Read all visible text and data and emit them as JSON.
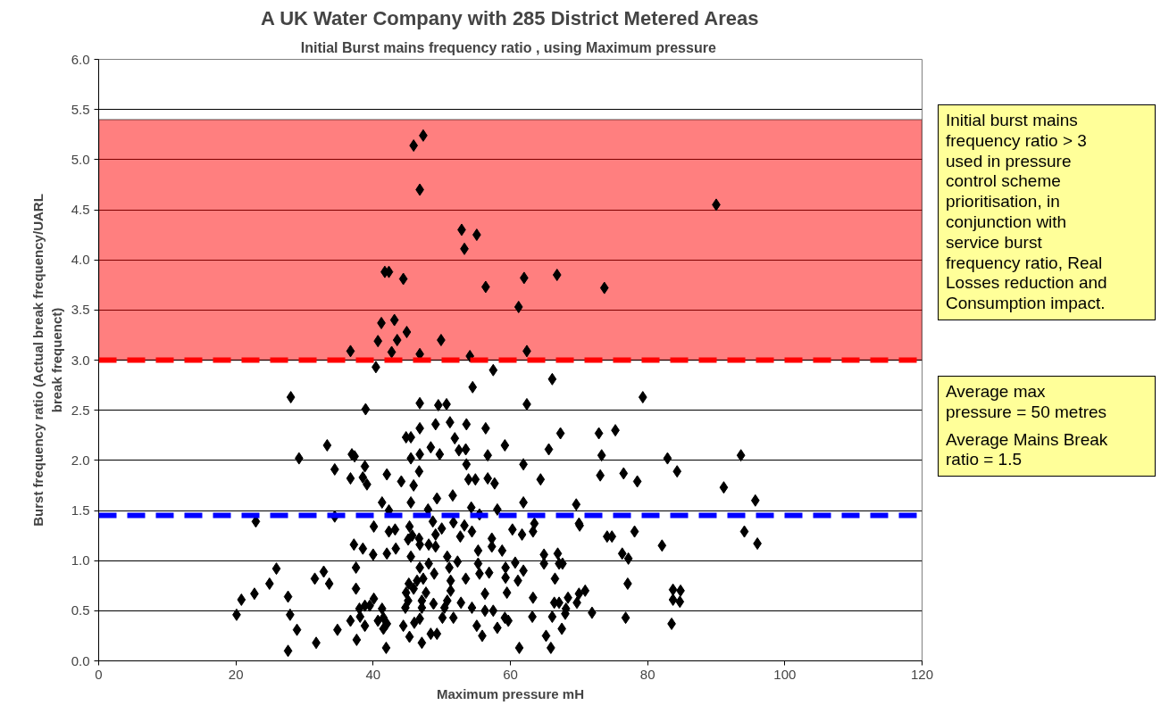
{
  "chart_data": {
    "type": "scatter",
    "title": "A UK Water Company with 285 District Metered Areas",
    "subtitle": "Initial Burst mains frequency ratio , using  Maximum pressure",
    "xlabel": "Maximum pressure mH",
    "ylabel": "Burst frequency ratio (Actual break frequency/UARL\nbreak frequenct)",
    "xlim": [
      0,
      120
    ],
    "xticks": [
      0,
      20,
      40,
      60,
      80,
      100,
      120
    ],
    "ylim": [
      0,
      6
    ],
    "yticks": [
      {
        "value": 0,
        "label": "0.0"
      },
      {
        "value": 0.5,
        "label": "0.5"
      },
      {
        "value": 1,
        "label": "1.0"
      },
      {
        "value": 1.5,
        "label": "1.5"
      },
      {
        "value": 2,
        "label": "2.0"
      },
      {
        "value": 2.5,
        "label": "2.5"
      },
      {
        "value": 3,
        "label": "3.0"
      },
      {
        "value": 3.5,
        "label": "3.5"
      },
      {
        "value": 4,
        "label": "4.0"
      },
      {
        "value": 4.5,
        "label": "4.5"
      },
      {
        "value": 5,
        "label": "5.0"
      },
      {
        "value": 5.5,
        "label": "5.5"
      },
      {
        "value": 6,
        "label": "6.0"
      }
    ],
    "grid": "y",
    "marker": "diamond",
    "series": [
      {
        "color": "#000000",
        "x": [
          47.3,
          45.9,
          46.8,
          52.9,
          55.1,
          53.3,
          90.0,
          56.4,
          62.0,
          66.8,
          73.7,
          41.7,
          42.3,
          44.4,
          61.2,
          41.2,
          43.1,
          44.9,
          40.7,
          43.5,
          49.9,
          36.7,
          42.7,
          46.8,
          54.1,
          62.4,
          40.4,
          57.5,
          54.5,
          28.0,
          46.8,
          49.5,
          50.7,
          38.9,
          66.1,
          62.4,
          79.3,
          33.3,
          29.2,
          36.9,
          37.3,
          34.4,
          38.8,
          36.7,
          38.5,
          39.1,
          22.9,
          34.4,
          37.2,
          38.5,
          25.9,
          37.5,
          32.8,
          31.5,
          33.6,
          24.9,
          22.7,
          27.6,
          37.5,
          20.8,
          20.1,
          27.9,
          38.0,
          38.8,
          38.1,
          36.7,
          38.8,
          28.9,
          34.8,
          31.7,
          37.6,
          27.6,
          44.8,
          45.5,
          46.8,
          49.1,
          51.2,
          53.6,
          56.4,
          51.9,
          48.4,
          52.5,
          53.5,
          59.2,
          67.3,
          72.9,
          75.3,
          65.6,
          73.3,
          45.5,
          46.8,
          49.7,
          56.7,
          53.6,
          61.9,
          46.7,
          42.0,
          44.1,
          45.9,
          53.9,
          54.9,
          56.7,
          57.7,
          64.4,
          73.1,
          41.3,
          45.5,
          49.3,
          51.6,
          61.9,
          69.6,
          42.3,
          48.0,
          54.3,
          55.5,
          58.1,
          40.1,
          42.3,
          43.2,
          45.3,
          45.7,
          46.7,
          48.7,
          50.0,
          49.1,
          51.7,
          53.3,
          54.4,
          52.7,
          60.3,
          61.7,
          63.5,
          63.3,
          70.0,
          70.1,
          74.1,
          74.8,
          57.3,
          40.0,
          42.0,
          43.3,
          45.1,
          46.8,
          48.1,
          49.1,
          45.5,
          50.8,
          52.3,
          55.3,
          57.3,
          58.8,
          64.9,
          66.9,
          46.8,
          48.1,
          48.9,
          51.1,
          55.3,
          55.5,
          56.9,
          59.3,
          60.7,
          61.9,
          53.5,
          64.9,
          67.1,
          67.6,
          66.5,
          45.2,
          46.4,
          47.3,
          51.3,
          59.3,
          61.1,
          44.8,
          45.9,
          47.7,
          51.3,
          56.3,
          59.5,
          45.1,
          47.1,
          48.8,
          50.8,
          52.8,
          63.3,
          66.4,
          67.1,
          68.4,
          70.0,
          70.9,
          69.7,
          39.5,
          40.1,
          41.3,
          44.7,
          47.1,
          50.4,
          54.4,
          56.3,
          57.5,
          68.1,
          71.9,
          40.7,
          41.5,
          42.0,
          44.4,
          46.0,
          46.8,
          50.1,
          51.7,
          59.2,
          59.7,
          63.2,
          66.1,
          68.0,
          41.5,
          55.1,
          58.1,
          45.3,
          48.4,
          49.3,
          55.9,
          65.2,
          67.5,
          41.9,
          47.1,
          61.3,
          65.9,
          76.5,
          78.5,
          82.9,
          84.3,
          91.1,
          93.6,
          95.7,
          78.1,
          82.1,
          94.1,
          96.0,
          76.3,
          77.2,
          77.1,
          83.7,
          84.8,
          83.7,
          84.7,
          76.8,
          83.5
        ],
        "values": [
          5.24,
          5.14,
          4.7,
          4.3,
          4.25,
          4.11,
          4.55,
          3.73,
          3.82,
          3.85,
          3.72,
          3.88,
          3.88,
          3.81,
          3.53,
          3.37,
          3.4,
          3.28,
          3.19,
          3.2,
          3.2,
          3.09,
          3.08,
          3.06,
          3.04,
          3.09,
          2.93,
          2.9,
          2.73,
          2.63,
          2.57,
          2.55,
          2.56,
          2.51,
          2.81,
          2.56,
          2.63,
          2.15,
          2.02,
          2.06,
          2.04,
          1.91,
          1.94,
          1.82,
          1.83,
          1.76,
          1.39,
          1.44,
          1.16,
          1.12,
          0.92,
          0.93,
          0.89,
          0.82,
          0.77,
          0.77,
          0.67,
          0.64,
          0.72,
          0.61,
          0.46,
          0.46,
          0.52,
          0.55,
          0.44,
          0.4,
          0.35,
          0.31,
          0.31,
          0.18,
          0.21,
          0.1,
          2.23,
          2.23,
          2.32,
          2.36,
          2.38,
          2.36,
          2.32,
          2.22,
          2.13,
          2.1,
          2.11,
          2.15,
          2.27,
          2.27,
          2.3,
          2.11,
          2.05,
          2.02,
          2.06,
          2.06,
          2.05,
          1.96,
          1.96,
          1.89,
          1.86,
          1.79,
          1.75,
          1.81,
          1.81,
          1.82,
          1.77,
          1.81,
          1.85,
          1.58,
          1.58,
          1.62,
          1.65,
          1.58,
          1.56,
          1.5,
          1.51,
          1.53,
          1.46,
          1.51,
          1.34,
          1.29,
          1.31,
          1.34,
          1.25,
          1.22,
          1.39,
          1.32,
          1.26,
          1.38,
          1.35,
          1.29,
          1.24,
          1.31,
          1.26,
          1.37,
          1.29,
          1.37,
          1.35,
          1.24,
          1.24,
          1.22,
          1.06,
          1.07,
          1.12,
          1.21,
          1.16,
          1.16,
          1.14,
          1.04,
          1.04,
          0.99,
          1.1,
          1.14,
          1.1,
          1.06,
          1.07,
          0.93,
          0.97,
          0.87,
          0.93,
          0.97,
          0.87,
          0.88,
          0.93,
          0.98,
          0.9,
          0.82,
          0.97,
          0.97,
          0.97,
          0.82,
          0.77,
          0.8,
          0.82,
          0.8,
          0.83,
          0.8,
          0.68,
          0.72,
          0.68,
          0.7,
          0.67,
          0.68,
          0.6,
          0.6,
          0.57,
          0.6,
          0.58,
          0.63,
          0.58,
          0.58,
          0.63,
          0.67,
          0.7,
          0.58,
          0.55,
          0.62,
          0.52,
          0.53,
          0.53,
          0.53,
          0.53,
          0.5,
          0.5,
          0.52,
          0.48,
          0.4,
          0.43,
          0.37,
          0.35,
          0.38,
          0.42,
          0.43,
          0.43,
          0.43,
          0.4,
          0.44,
          0.44,
          0.47,
          0.32,
          0.35,
          0.33,
          0.24,
          0.27,
          0.27,
          0.25,
          0.25,
          0.32,
          0.13,
          0.18,
          0.13,
          0.13,
          1.87,
          1.79,
          2.02,
          1.89,
          1.73,
          2.05,
          1.6,
          1.29,
          1.15,
          1.29,
          1.17,
          1.07,
          1.02,
          0.77,
          0.71,
          0.7,
          0.61,
          0.59,
          0.43,
          0.37
        ]
      }
    ],
    "bands": [
      {
        "axis": "y",
        "from": 3.0,
        "to": 5.4,
        "color": "#ff0000"
      }
    ],
    "ref_lines": [
      {
        "axis": "y",
        "value": 3.0,
        "color": "#ff0000",
        "line_style": "dashed"
      },
      {
        "axis": "y",
        "value": 1.45,
        "color": "#0000ff",
        "line_style": "dashed"
      }
    ],
    "annotations": [
      "Initial burst mains\nfrequency ratio > 3\nused in pressure\ncontrol scheme\nprioritisation, in\nconjunction with\nservice burst\nfrequency ratio, Real\nLosses reduction and\nConsumption impact.",
      "Average max\npressure = 50 metres",
      "Average Mains Break\nratio = 1.5"
    ]
  }
}
